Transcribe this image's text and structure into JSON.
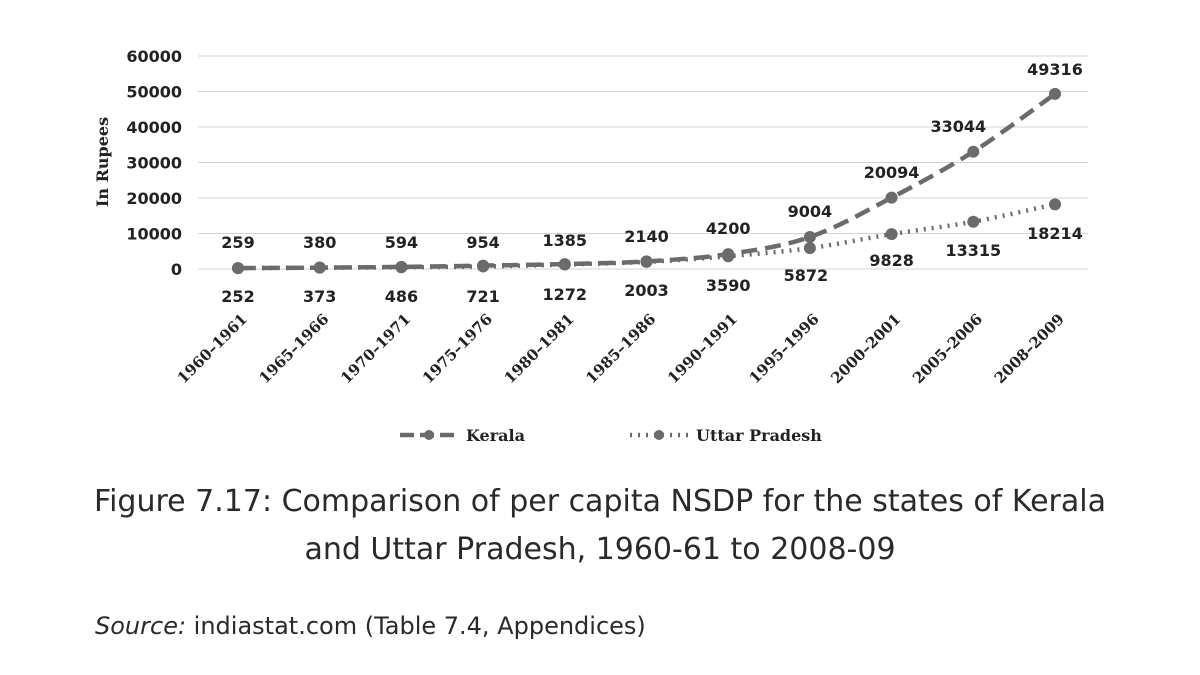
{
  "chart_data": {
    "type": "line",
    "ylabel": "In Rupees",
    "xlabel": "",
    "ylim": [
      0,
      60000
    ],
    "yticks": [
      0,
      10000,
      20000,
      30000,
      40000,
      50000,
      60000
    ],
    "grid": true,
    "legend_position": "bottom",
    "categories": [
      "1960–1961",
      "1965–1966",
      "1970–1971",
      "1975–1976",
      "1980–1981",
      "1985–1986",
      "1990–1991",
      "1995–1996",
      "2000–2001",
      "2005–2006",
      "2008–2009"
    ],
    "series": [
      {
        "name": "Kerala",
        "style": "dashed",
        "color": "#6b6b6b",
        "values": [
          259,
          380,
          594,
          954,
          1385,
          2140,
          4200,
          9004,
          20094,
          33044,
          49316
        ]
      },
      {
        "name": "Uttar Pradesh",
        "style": "dotted",
        "color": "#6b6b6b",
        "values": [
          252,
          373,
          486,
          721,
          1272,
          2003,
          3590,
          5872,
          9828,
          13315,
          18214
        ]
      }
    ]
  },
  "caption": {
    "line1": "Figure 7.17: Comparison of per capita NSDP for the states of Kerala",
    "line2": "and Uttar Pradesh, 1960-61 to 2008-09"
  },
  "source": {
    "label": "Source:",
    "text": " indiastat.com (Table 7.4, Appendices)"
  }
}
